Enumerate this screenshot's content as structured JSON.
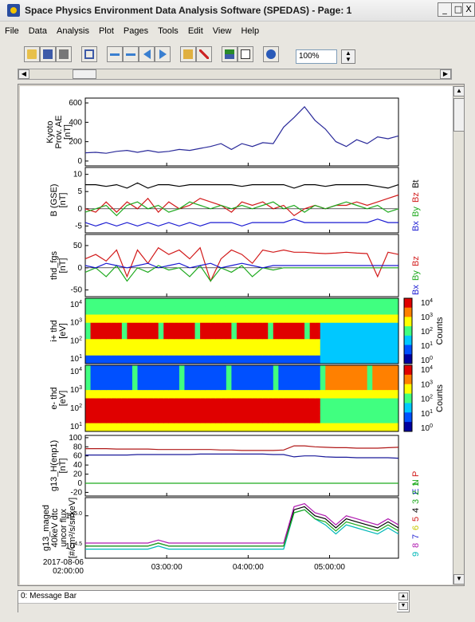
{
  "window": {
    "title": "Space Physics Environment Data Analysis Software (SPEDAS) - Page: 1",
    "minimize": "_",
    "maximize": "□",
    "close": "X"
  },
  "menu": [
    "File",
    "Data",
    "Analysis",
    "Plot",
    "Pages",
    "Tools",
    "Edit",
    "View",
    "Help"
  ],
  "toolbar": {
    "icons": [
      "open-folder-icon",
      "save-icon",
      "print-icon",
      "copy-icon",
      "shift-left-icon",
      "shift-right-icon",
      "step-back-icon",
      "step-forward-icon",
      "data-manager-icon",
      "delete-icon",
      "layout-icon",
      "blank-page-icon",
      "help-icon"
    ],
    "zoom_value": "100%"
  },
  "message_bar": {
    "text": "0: Message Bar"
  },
  "chart_data": {
    "type": "line",
    "x_start_label": [
      "2017-08-06",
      "02:00:00"
    ],
    "x_ticks": [
      "03:00:00",
      "04:00:00",
      "05:00:00"
    ],
    "panels": [
      {
        "ylabel": [
          "Kyoto",
          "Prov. AE",
          "[nT]"
        ],
        "yticks": [
          "600",
          "400",
          "200",
          "0"
        ],
        "ylim": [
          -50,
          650
        ],
        "series": [
          {
            "color": "#2a2a9a",
            "values": [
              85,
              90,
              80,
              100,
              110,
              90,
              110,
              90,
              100,
              120,
              110,
              130,
              150,
              180,
              120,
              180,
              150,
              190,
              180,
              350,
              450,
              560,
              420,
              330,
              200,
              150,
              220,
              180,
              250,
              230,
              260
            ]
          }
        ]
      },
      {
        "ylabel": [
          "B (GSE)",
          "[nT]"
        ],
        "yticks": [
          "10",
          "5",
          "0",
          "-5"
        ],
        "ylim": [
          -7,
          12
        ],
        "legend": [
          {
            "name": "Bt",
            "color": "#000000"
          },
          {
            "name": "Bz",
            "color": "#d21a1a"
          },
          {
            "name": "By",
            "color": "#1faa1f"
          },
          {
            "name": "Bx",
            "color": "#1a1ad2"
          }
        ],
        "series": [
          {
            "name": "Bt",
            "color": "#000000",
            "values": [
              7,
              7,
              6.5,
              7,
              6,
              7.5,
              6,
              7,
              7,
              6.5,
              7,
              7,
              7,
              7,
              7,
              6.5,
              7,
              7,
              7,
              7,
              6,
              7,
              7,
              6.5,
              7,
              7,
              7,
              7,
              6.5,
              6,
              7
            ]
          },
          {
            "name": "Bz",
            "color": "#d21a1a",
            "values": [
              0,
              -1,
              2,
              -1,
              2,
              0,
              3,
              -1,
              2,
              0,
              1,
              3,
              2,
              1,
              -1,
              2,
              1,
              2,
              0,
              1,
              -2,
              0,
              1,
              0,
              1,
              1,
              2,
              1,
              2,
              3,
              4
            ]
          },
          {
            "name": "By",
            "color": "#1faa1f",
            "values": [
              -1,
              0,
              1,
              -2,
              1,
              2,
              0,
              1,
              -1,
              0,
              2,
              1,
              0,
              1,
              0,
              1,
              0,
              1,
              2,
              0,
              1,
              -1,
              1,
              0,
              1,
              2,
              1,
              0,
              1,
              -1,
              0
            ]
          },
          {
            "name": "Bx",
            "color": "#1a1ad2",
            "values": [
              -4,
              -5,
              -4,
              -5,
              -4,
              -5,
              -4,
              -5,
              -4,
              -5,
              -4,
              -5,
              -4,
              -4,
              -4,
              -5,
              -4,
              -4,
              -4,
              -4,
              -3,
              -4,
              -4,
              -4,
              -4,
              -4,
              -4,
              -4,
              -3,
              -4,
              -4
            ]
          }
        ]
      },
      {
        "ylabel": [
          "thd_fgs",
          "[nT]"
        ],
        "yticks": [
          "50",
          "0",
          "-50"
        ],
        "ylim": [
          -65,
          75
        ],
        "legend": [
          {
            "name": "Bz",
            "color": "#d21a1a"
          },
          {
            "name": "By",
            "color": "#1faa1f"
          },
          {
            "name": "Bx",
            "color": "#1a1ad2"
          }
        ],
        "series": [
          {
            "name": "Bz",
            "color": "#d21a1a",
            "values": [
              20,
              30,
              15,
              40,
              -20,
              40,
              10,
              45,
              30,
              40,
              20,
              45,
              -30,
              20,
              40,
              30,
              10,
              40,
              35,
              40,
              35,
              35,
              33,
              32,
              33,
              35,
              33,
              32,
              -20,
              35,
              30
            ]
          },
          {
            "name": "By",
            "color": "#1faa1f",
            "values": [
              -10,
              0,
              -20,
              5,
              -30,
              0,
              -10,
              5,
              -5,
              0,
              -20,
              5,
              -30,
              0,
              -10,
              5,
              -20,
              0,
              -5,
              0,
              0,
              0,
              0,
              0,
              0,
              0,
              0,
              0,
              0,
              0,
              0
            ]
          },
          {
            "name": "Bx",
            "color": "#1a1ad2",
            "values": [
              5,
              0,
              10,
              5,
              0,
              5,
              10,
              0,
              5,
              10,
              0,
              5,
              10,
              0,
              5,
              10,
              5,
              0,
              5,
              5,
              5,
              5,
              5,
              5,
              5,
              5,
              5,
              5,
              5,
              5,
              5
            ]
          }
        ]
      },
      {
        "type": "heatmap",
        "ylabel": [
          "i+ thd",
          "[eV]"
        ],
        "yticks": [
          "10^4",
          "10^3",
          "10^2",
          "10^1"
        ],
        "colorbar_ticks": [
          "10^4",
          "10^3",
          "10^2",
          "10^1",
          "10^0"
        ],
        "colorbar_label": "Counts"
      },
      {
        "type": "heatmap",
        "ylabel": [
          "e- thd",
          "[eV]"
        ],
        "yticks": [
          "10^4",
          "10^3",
          "10^2",
          "10^1"
        ],
        "colorbar_ticks": [
          "10^4",
          "10^3",
          "10^2",
          "10^1",
          "10^0"
        ],
        "colorbar_label": "Counts"
      },
      {
        "ylabel": [
          "g13_H(enp1)",
          "[nT]"
        ],
        "yticks": [
          "100",
          "80",
          "60",
          "40",
          "20",
          "0",
          "-20"
        ],
        "ylim": [
          -28,
          105
        ],
        "legend": [
          {
            "name": "P",
            "color": "#d21a1a"
          },
          {
            "name": "N",
            "color": "#1faa1f"
          },
          {
            "name": "E",
            "color": "#1a1ad2"
          }
        ],
        "series": [
          {
            "name": "P",
            "color": "#b01818",
            "values": [
              76,
              76,
              76,
              75,
              75,
              75,
              75,
              74,
              74,
              74,
              74,
              74,
              74,
              73,
              73,
              72,
              72,
              72,
              72,
              73,
              82,
              82,
              80,
              79,
              78,
              78,
              77,
              77,
              77,
              78,
              79
            ]
          },
          {
            "name": "N",
            "color": "#1a1a9a",
            "values": [
              62,
              62,
              62,
              62,
              62,
              63,
              63,
              63,
              63,
              63,
              63,
              64,
              64,
              64,
              64,
              64,
              64,
              64,
              63,
              63,
              58,
              60,
              60,
              58,
              57,
              57,
              56,
              56,
              56,
              56,
              55
            ]
          },
          {
            "name": "E",
            "color": "#1faa1f",
            "values": [
              0,
              0,
              0,
              0,
              0,
              0,
              0,
              0,
              0,
              0,
              0,
              0,
              0,
              0,
              0,
              0,
              0,
              0,
              0,
              0,
              0,
              0,
              0,
              0,
              0,
              0,
              0,
              0,
              0,
              0,
              0
            ]
          }
        ]
      },
      {
        "ylabel": [
          "g13_maged",
          "40keV dtc",
          "uncor flux",
          "[#/cm²/s/sr/keV]"
        ],
        "yticks": [
          "10^5.0",
          "10^4.5"
        ],
        "ylim": [
          4.3,
          5.3
        ],
        "legend": [
          {
            "name": "1",
            "color": "#1faa1f"
          },
          {
            "name": "2",
            "color": "#1faa1f"
          },
          {
            "name": "3",
            "color": "#1faa1f"
          },
          {
            "name": "4",
            "color": "#000000"
          },
          {
            "name": "5",
            "color": "#d21a1a"
          },
          {
            "name": "6",
            "color": "#c8c800"
          },
          {
            "name": "7",
            "color": "#1a1ad2"
          },
          {
            "name": "8",
            "color": "#b01ab0"
          },
          {
            "name": "9",
            "color": "#00b8b8"
          }
        ],
        "series": [
          {
            "name": "4",
            "color": "#000000",
            "values": [
              4.5,
              4.5,
              4.5,
              4.5,
              4.5,
              4.5,
              4.5,
              4.55,
              4.5,
              4.5,
              4.5,
              4.5,
              4.5,
              4.5,
              4.5,
              4.5,
              4.5,
              4.5,
              4.5,
              4.5,
              5.1,
              5.15,
              5.0,
              4.95,
              4.8,
              4.95,
              4.9,
              4.85,
              4.8,
              4.9,
              4.8
            ]
          },
          {
            "name": "8",
            "color": "#b01ab0",
            "values": [
              4.55,
              4.55,
              4.55,
              4.55,
              4.55,
              4.55,
              4.55,
              4.6,
              4.55,
              4.55,
              4.55,
              4.55,
              4.55,
              4.55,
              4.55,
              4.55,
              4.55,
              4.55,
              4.55,
              4.55,
              5.15,
              5.2,
              5.05,
              5.0,
              4.85,
              5.0,
              4.95,
              4.9,
              4.85,
              4.95,
              4.85
            ]
          },
          {
            "name": "9",
            "color": "#00b8b8",
            "values": [
              4.45,
              4.45,
              4.45,
              4.45,
              4.45,
              4.45,
              4.45,
              4.5,
              4.45,
              4.45,
              4.45,
              4.45,
              4.45,
              4.45,
              4.45,
              4.45,
              4.45,
              4.45,
              4.45,
              4.45,
              5.05,
              5.1,
              4.95,
              4.85,
              4.7,
              4.85,
              4.8,
              4.75,
              4.7,
              4.8,
              4.7
            ]
          },
          {
            "name": "2",
            "color": "#1faa1f",
            "values": [
              4.5,
              4.5,
              4.5,
              4.5,
              4.5,
              4.5,
              4.5,
              4.55,
              4.5,
              4.5,
              4.5,
              4.5,
              4.5,
              4.5,
              4.5,
              4.5,
              4.5,
              4.5,
              4.5,
              4.5,
              5.05,
              5.1,
              4.95,
              4.9,
              4.75,
              4.9,
              4.85,
              4.8,
              4.75,
              4.85,
              4.75
            ]
          }
        ]
      }
    ]
  }
}
